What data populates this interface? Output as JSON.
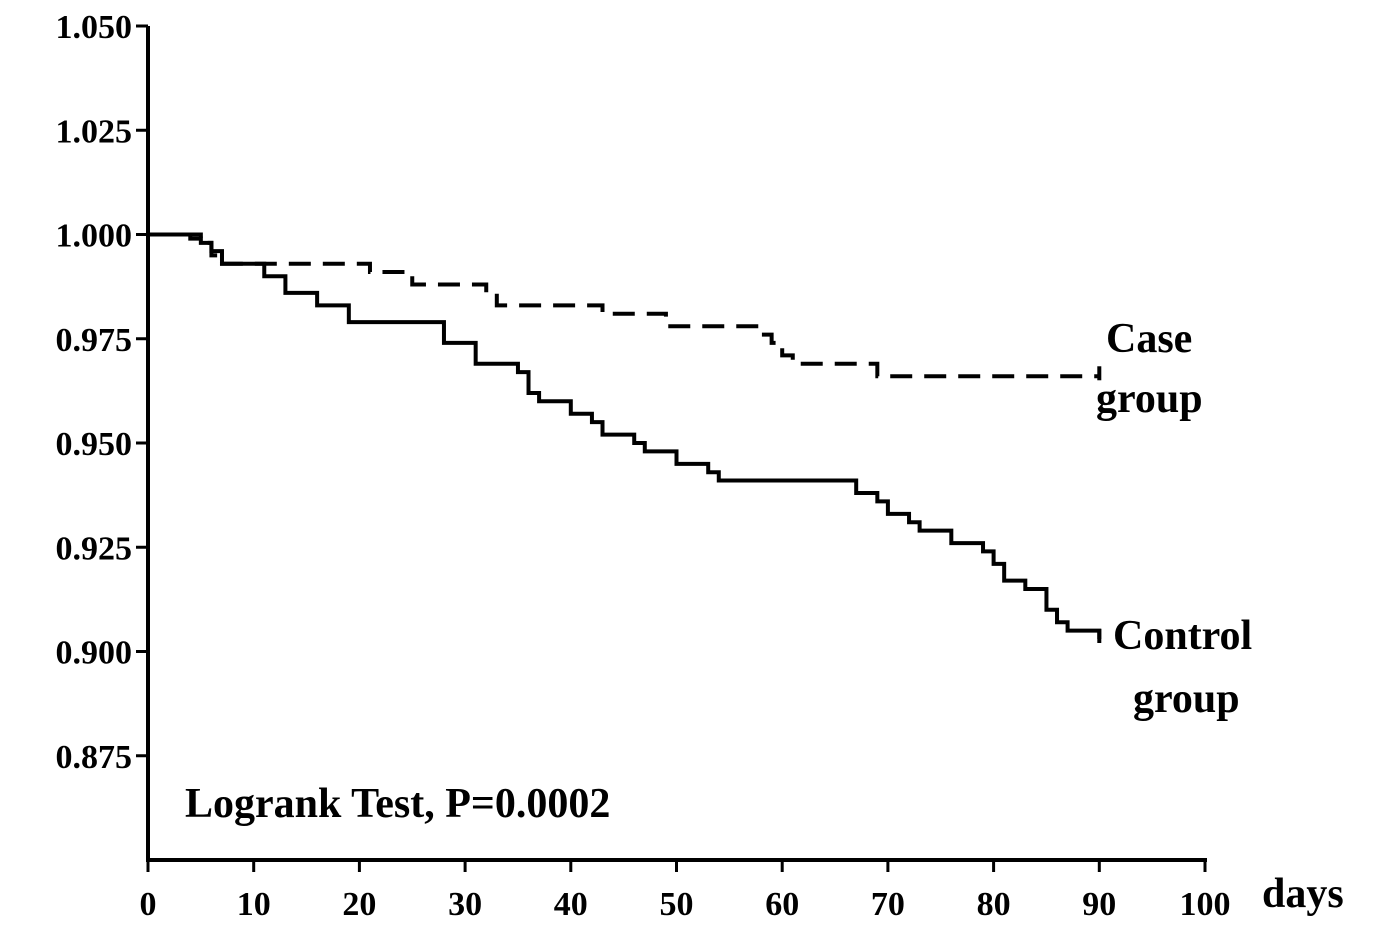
{
  "chart_data": {
    "type": "line",
    "subtype": "kaplan-meier-step",
    "title": "",
    "xlabel": "days",
    "ylabel": "",
    "xlim": [
      0,
      100
    ],
    "ylim": [
      0.85,
      1.05
    ],
    "x_ticks": [
      0,
      10,
      20,
      30,
      40,
      50,
      60,
      70,
      80,
      90,
      100
    ],
    "x_tick_labels": [
      "0",
      "10",
      "20",
      "30",
      "40",
      "50",
      "60",
      "70",
      "80",
      "90",
      "100"
    ],
    "y_ticks": [
      0.875,
      0.9,
      0.925,
      0.95,
      0.975,
      1.0,
      1.025,
      1.05
    ],
    "y_tick_labels": [
      "0.875",
      "0.900",
      "0.925",
      "0.950",
      "0.975",
      "1.000",
      "1.025",
      "1.050"
    ],
    "grid": false,
    "legend": "none",
    "annotation": "Logrank Test, P=0.0002",
    "series": [
      {
        "name": "Case group",
        "label_lines": [
          "Case",
          "group"
        ],
        "line_style": "dashed",
        "color": "#000000",
        "steps": [
          [
            0,
            1.0
          ],
          [
            5,
            0.998
          ],
          [
            6,
            0.995
          ],
          [
            7,
            0.993
          ],
          [
            21,
            0.991
          ],
          [
            25,
            0.988
          ],
          [
            32,
            0.986
          ],
          [
            33,
            0.983
          ],
          [
            43,
            0.981
          ],
          [
            49,
            0.978
          ],
          [
            58,
            0.976
          ],
          [
            59,
            0.974
          ],
          [
            60,
            0.971
          ],
          [
            61,
            0.969
          ],
          [
            69,
            0.966
          ],
          [
            90,
            0.966
          ]
        ]
      },
      {
        "name": "Control group",
        "label_lines": [
          "Control",
          "group"
        ],
        "line_style": "solid",
        "color": "#000000",
        "steps": [
          [
            0,
            1.0
          ],
          [
            4,
            0.999
          ],
          [
            5,
            0.998
          ],
          [
            6,
            0.996
          ],
          [
            7,
            0.993
          ],
          [
            11,
            0.99
          ],
          [
            13,
            0.986
          ],
          [
            16,
            0.983
          ],
          [
            19,
            0.979
          ],
          [
            28,
            0.974
          ],
          [
            31,
            0.969
          ],
          [
            35,
            0.967
          ],
          [
            36,
            0.962
          ],
          [
            37,
            0.96
          ],
          [
            40,
            0.957
          ],
          [
            42,
            0.955
          ],
          [
            43,
            0.952
          ],
          [
            46,
            0.95
          ],
          [
            47,
            0.948
          ],
          [
            50,
            0.945
          ],
          [
            53,
            0.943
          ],
          [
            54,
            0.941
          ],
          [
            67,
            0.938
          ],
          [
            69,
            0.936
          ],
          [
            70,
            0.933
          ],
          [
            72,
            0.931
          ],
          [
            73,
            0.929
          ],
          [
            76,
            0.926
          ],
          [
            79,
            0.924
          ],
          [
            80,
            0.921
          ],
          [
            81,
            0.917
          ],
          [
            83,
            0.915
          ],
          [
            85,
            0.91
          ],
          [
            86,
            0.907
          ],
          [
            87,
            0.905
          ],
          [
            90,
            0.903
          ]
        ]
      }
    ]
  }
}
